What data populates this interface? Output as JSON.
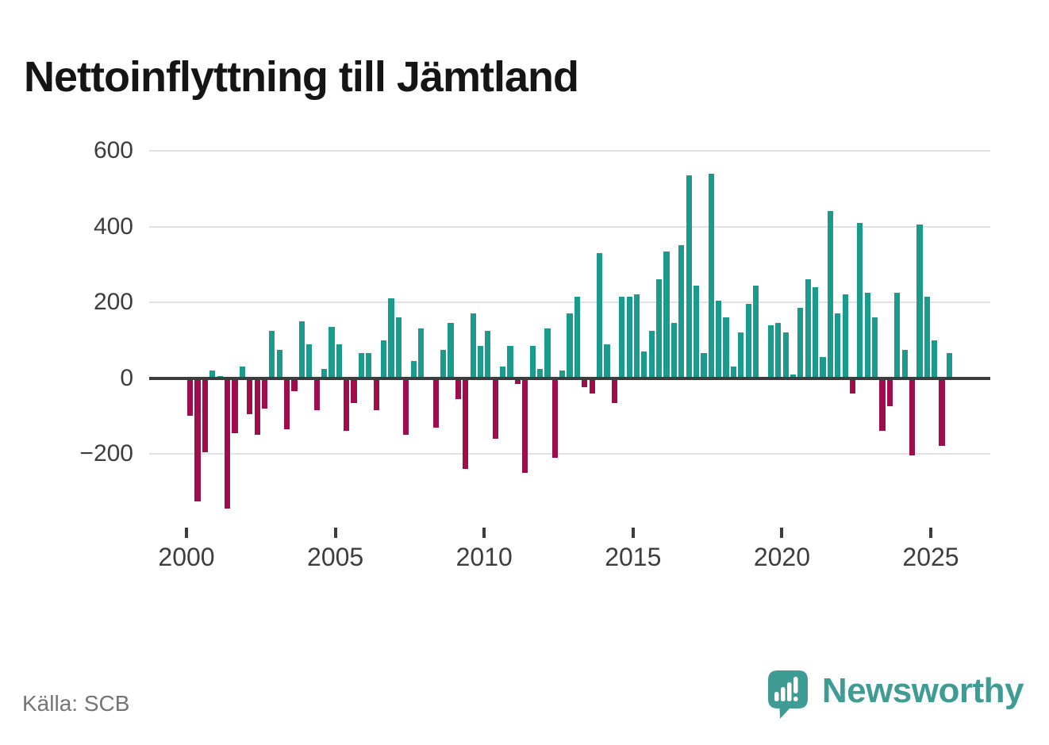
{
  "title": "Nettoinflyttning till Jämtland",
  "source": "Källa: SCB",
  "branding": {
    "name": "Newsworthy"
  },
  "colors": {
    "positive": "#1b9a8e",
    "negative": "#a00d4d",
    "axis": "#3d3d3d",
    "grid": "#e2e2e2",
    "tick_label": "#3d3d3d",
    "source_text": "#757575",
    "brand": "#3f9c94",
    "title_text": "#151515",
    "background": "#ffffff"
  },
  "chart_data": {
    "type": "bar",
    "title": "Nettoinflyttning till Jämtland",
    "xlabel": "",
    "ylabel": "",
    "y_ticks": [
      600,
      400,
      200,
      0,
      -200
    ],
    "x_ticks": [
      2000,
      2005,
      2010,
      2015,
      2020,
      2025
    ],
    "ylim": [
      -360,
      640
    ],
    "grid": true,
    "legend": "none",
    "frequency": "quarterly",
    "start": "2000Q1",
    "end": "2025Q3",
    "series_name": "Nettoinflyttning",
    "years": [
      {
        "year": 2000,
        "values": [
          -100,
          -325,
          -195,
          20
        ]
      },
      {
        "year": 2001,
        "values": [
          5,
          -345,
          -145,
          30
        ]
      },
      {
        "year": 2002,
        "values": [
          -95,
          -150,
          -80,
          125
        ]
      },
      {
        "year": 2003,
        "values": [
          75,
          -135,
          -35,
          150
        ]
      },
      {
        "year": 2004,
        "values": [
          90,
          -85,
          25,
          135
        ]
      },
      {
        "year": 2005,
        "values": [
          90,
          -140,
          -65,
          65
        ]
      },
      {
        "year": 2006,
        "values": [
          65,
          -85,
          100,
          210
        ]
      },
      {
        "year": 2007,
        "values": [
          160,
          -150,
          45,
          130
        ]
      },
      {
        "year": 2008,
        "values": [
          0,
          -130,
          75,
          145
        ]
      },
      {
        "year": 2009,
        "values": [
          -55,
          -240,
          170,
          85
        ]
      },
      {
        "year": 2010,
        "values": [
          125,
          -160,
          30,
          85
        ]
      },
      {
        "year": 2011,
        "values": [
          -15,
          -250,
          85,
          25
        ]
      },
      {
        "year": 2012,
        "values": [
          130,
          -210,
          20,
          170
        ]
      },
      {
        "year": 2013,
        "values": [
          215,
          -25,
          -40,
          330
        ]
      },
      {
        "year": 2014,
        "values": [
          90,
          -65,
          215,
          215
        ]
      },
      {
        "year": 2015,
        "values": [
          220,
          70,
          125,
          260
        ]
      },
      {
        "year": 2016,
        "values": [
          335,
          145,
          350,
          535
        ]
      },
      {
        "year": 2017,
        "values": [
          245,
          65,
          540,
          205
        ]
      },
      {
        "year": 2018,
        "values": [
          160,
          30,
          120,
          195
        ]
      },
      {
        "year": 2019,
        "values": [
          245,
          0,
          140,
          145
        ]
      },
      {
        "year": 2020,
        "values": [
          120,
          10,
          185,
          260
        ]
      },
      {
        "year": 2021,
        "values": [
          240,
          55,
          440,
          170
        ]
      },
      {
        "year": 2022,
        "values": [
          220,
          -40,
          410,
          225
        ]
      },
      {
        "year": 2023,
        "values": [
          160,
          -140,
          -75,
          225
        ]
      },
      {
        "year": 2024,
        "values": [
          75,
          -205,
          405,
          215
        ]
      },
      {
        "year": 2025,
        "values": [
          100,
          -180,
          65
        ]
      }
    ]
  }
}
